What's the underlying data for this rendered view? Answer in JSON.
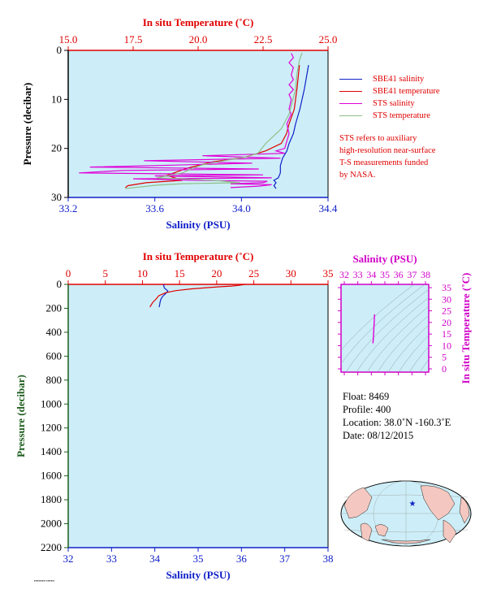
{
  "chart_data": [
    {
      "type": "line",
      "top_axis_label": "In situ Temperature (˚C)",
      "top_ticks": [
        "15.0",
        "17.5",
        "20.0",
        "22.5",
        "25.0"
      ],
      "top_range": [
        15.0,
        25.0
      ],
      "xlabel": "Salinity (PSU)",
      "x_ticks": [
        "33.2",
        "33.6",
        "34.0",
        "34.4"
      ],
      "xlim": [
        33.2,
        34.4
      ],
      "ylabel": "Pressure (decibar)",
      "y_ticks": [
        "0",
        "10",
        "20",
        "30"
      ],
      "ylim": [
        0,
        30
      ],
      "legend": "right",
      "series": [
        {
          "name": "SBE41 salinity",
          "color": "#1020c8",
          "axis": "salinity",
          "points": [
            [
              34.31,
              3
            ],
            [
              34.29,
              8
            ],
            [
              34.27,
              12
            ],
            [
              34.25,
              15
            ],
            [
              34.24,
              17
            ],
            [
              34.22,
              19
            ],
            [
              34.21,
              20.5
            ],
            [
              34.19,
              22
            ],
            [
              34.18,
              23.5
            ],
            [
              34.18,
              25
            ],
            [
              34.17,
              26
            ],
            [
              34.15,
              26.5
            ],
            [
              34.16,
              27
            ],
            [
              34.15,
              27.6
            ],
            [
              34.16,
              28.2
            ]
          ]
        },
        {
          "name": "SBE41 temperature",
          "color": "#e00000",
          "axis": "temperature",
          "points": [
            [
              23.9,
              3
            ],
            [
              23.8,
              8
            ],
            [
              23.7,
              12
            ],
            [
              23.5,
              15
            ],
            [
              23.4,
              17
            ],
            [
              23.2,
              19
            ],
            [
              22.6,
              20.5
            ],
            [
              21.8,
              21.8
            ],
            [
              20.5,
              22.8
            ],
            [
              19.6,
              24
            ],
            [
              18.8,
              25.5
            ],
            [
              19.4,
              26.5
            ],
            [
              18.0,
              27
            ],
            [
              17.3,
              27.6
            ],
            [
              17.2,
              28
            ]
          ]
        },
        {
          "name": "STS salinity",
          "color": "#e000d8",
          "axis": "salinity",
          "points": [
            [
              34.23,
              0.6
            ],
            [
              34.24,
              1.5
            ],
            [
              34.22,
              2.5
            ],
            [
              34.24,
              3.5
            ],
            [
              34.23,
              5
            ],
            [
              34.24,
              6
            ],
            [
              34.22,
              7
            ],
            [
              34.24,
              8
            ],
            [
              34.22,
              9
            ],
            [
              34.23,
              10
            ],
            [
              34.22,
              12
            ],
            [
              34.23,
              13
            ],
            [
              34.21,
              15
            ],
            [
              34.22,
              17
            ],
            [
              34.21,
              18.5
            ],
            [
              34.2,
              20
            ],
            [
              34.16,
              20.5
            ],
            [
              34.2,
              21
            ],
            [
              33.82,
              21.5
            ],
            [
              34.18,
              22
            ],
            [
              33.55,
              22.5
            ],
            [
              34.05,
              23
            ],
            [
              33.6,
              23.5
            ],
            [
              33.3,
              23.8
            ],
            [
              33.7,
              24
            ],
            [
              34.08,
              24.2
            ],
            [
              33.45,
              24.5
            ],
            [
              33.25,
              25
            ],
            [
              33.7,
              25.2
            ],
            [
              34.1,
              25.4
            ],
            [
              33.6,
              25.6
            ],
            [
              33.9,
              25.8
            ],
            [
              34.14,
              26
            ],
            [
              33.5,
              26.2
            ],
            [
              33.8,
              26.5
            ],
            [
              34.12,
              26.7
            ],
            [
              34.1,
              27
            ],
            [
              33.95,
              27.2
            ],
            [
              34.14,
              27.4
            ],
            [
              34.08,
              27.7
            ],
            [
              33.95,
              28
            ]
          ]
        },
        {
          "name": "STS temperature",
          "color": "#8ec08a",
          "axis": "temperature",
          "points": [
            [
              24.0,
              0.5
            ],
            [
              23.9,
              2
            ],
            [
              23.8,
              5
            ],
            [
              23.75,
              8
            ],
            [
              23.6,
              11
            ],
            [
              23.5,
              13
            ],
            [
              23.3,
              15
            ],
            [
              23.2,
              16
            ],
            [
              23.0,
              17
            ],
            [
              22.8,
              18
            ],
            [
              22.6,
              19
            ],
            [
              22.45,
              20
            ],
            [
              22.3,
              21
            ],
            [
              21.8,
              21.8
            ],
            [
              21.0,
              22.5
            ],
            [
              20.2,
              23.3
            ],
            [
              19.8,
              24
            ],
            [
              19.4,
              25
            ],
            [
              18.9,
              25.5
            ],
            [
              18.4,
              26
            ],
            [
              19.8,
              26.3
            ],
            [
              20.6,
              26.5
            ],
            [
              21.6,
              27
            ],
            [
              19.4,
              27.2
            ],
            [
              18.4,
              27.5
            ],
            [
              17.7,
              27.9
            ],
            [
              17.2,
              28.2
            ]
          ]
        }
      ]
    },
    {
      "type": "line",
      "top_axis_label": "In situ Temperature (˚C)",
      "top_ticks": [
        "0",
        "5",
        "10",
        "15",
        "20",
        "25",
        "30",
        "35"
      ],
      "top_range": [
        0,
        35
      ],
      "xlabel": "Salinity (PSU)",
      "x_ticks": [
        "32",
        "33",
        "34",
        "35",
        "36",
        "37",
        "38"
      ],
      "xlim": [
        32,
        38
      ],
      "ylabel": "Pressure (decibar)",
      "y_ticks": [
        "0",
        "200",
        "400",
        "600",
        "800",
        "1000",
        "1200",
        "1400",
        "1600",
        "1800",
        "2000",
        "2200"
      ],
      "ylim": [
        0,
        2200
      ],
      "series": [
        {
          "name": "SBE41 salinity",
          "color": "#1020c8",
          "axis": "salinity",
          "points": [
            [
              34.2,
              0
            ],
            [
              34.22,
              30
            ],
            [
              34.3,
              55
            ],
            [
              34.24,
              80
            ],
            [
              34.18,
              100
            ],
            [
              34.14,
              125
            ],
            [
              34.12,
              150
            ],
            [
              34.11,
              175
            ],
            [
              34.1,
              190
            ]
          ]
        },
        {
          "name": "SBE41 temperature",
          "color": "#e00000",
          "axis": "temperature",
          "points": [
            [
              23.8,
              0
            ],
            [
              23,
              8
            ],
            [
              22,
              14
            ],
            [
              20.5,
              20
            ],
            [
              18.6,
              28
            ],
            [
              16.5,
              38
            ],
            [
              14.5,
              52
            ],
            [
              13.1,
              70
            ],
            [
              12.2,
              95
            ],
            [
              11.8,
              125
            ],
            [
              11.4,
              150
            ],
            [
              11.2,
              170
            ],
            [
              11.0,
              190
            ]
          ]
        }
      ]
    },
    {
      "type": "scatter",
      "xlabel": "Salinity (PSU)",
      "x_ticks": [
        "32",
        "33",
        "34",
        "35",
        "36",
        "37",
        "38"
      ],
      "xlim": [
        32,
        38
      ],
      "ylabel": "In situ Temperature (˚C)",
      "y_ticks": [
        "0",
        "5",
        "10",
        "15",
        "20",
        "25",
        "30",
        "35"
      ],
      "ylim": [
        0,
        35
      ],
      "series": [
        {
          "name": "T-S",
          "color": "#e000d8",
          "points": [
            [
              34.24,
              23.5
            ],
            [
              34.22,
              21.5
            ],
            [
              34.2,
              19
            ],
            [
              34.18,
              16.5
            ],
            [
              34.16,
              14.5
            ],
            [
              34.14,
              12.5
            ],
            [
              34.12,
              11
            ]
          ]
        }
      ]
    }
  ],
  "legend_entries": [
    {
      "label": "SBE41 salinity",
      "color": "#1020c8"
    },
    {
      "label": "SBE41 temperature",
      "color": "#e00000"
    },
    {
      "label": "STS salinity",
      "color": "#e000d8"
    },
    {
      "label": "STS temperature",
      "color": "#8ec08a"
    }
  ],
  "note_lines": [
    "STS refers to auxiliary",
    "high-resolution near-surface",
    "T-S measurements funded",
    "by NASA."
  ],
  "info": {
    "float": "Float:  8469",
    "profile": "Profile:  400",
    "location": "Location:  38.0˚N  -160.3˚E",
    "date": "Date:  08/12/2015"
  },
  "colors": {
    "plot_bg": "#cdeef8",
    "temperature_axis": "#e00000",
    "salinity_axis": "#1020c8",
    "pressure_axis": "#1c5c1c",
    "ts_axis": "#d000c8",
    "map_ocean": "#cdeef8",
    "map_land": "#f4c8c0"
  },
  "map": {
    "marker_symbol": "★",
    "marker_color": "#1020c8"
  }
}
